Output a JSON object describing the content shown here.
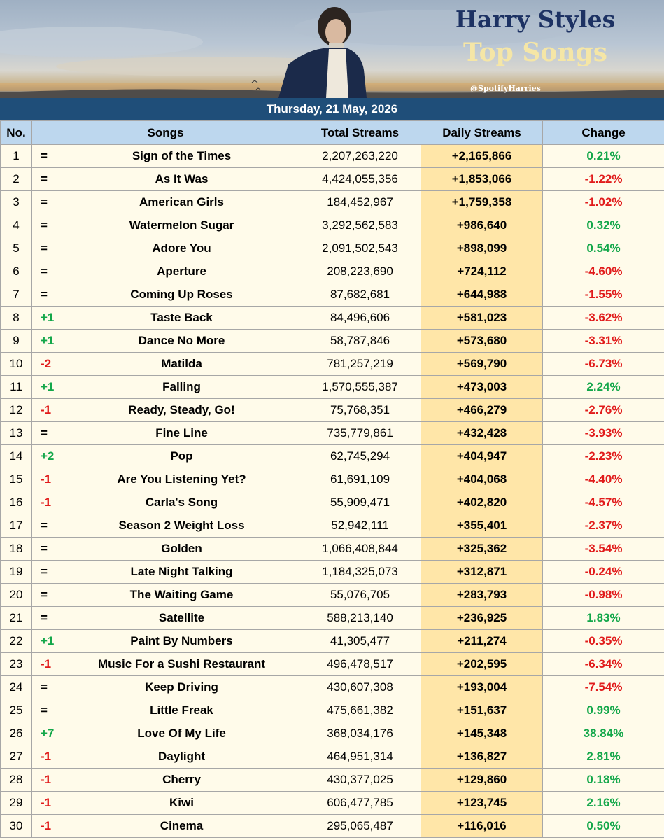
{
  "header": {
    "title_line1": "Harry Styles",
    "title_line2": "Top Songs",
    "handle": "@SpotifyHarries",
    "date": "Thursday, 21 May, 2026"
  },
  "colors": {
    "title_navy": "#1d3263",
    "title_cream": "#f5e6a6",
    "date_bar": "#1f4e79",
    "header_row": "#bdd7ee",
    "table_body": "#fffbea",
    "daily_column": "#ffe6a8",
    "positive": "#13a74a",
    "negative": "#e11b1b"
  },
  "chart_data": {
    "type": "table",
    "columns": [
      "No.",
      "Songs",
      "Total Streams",
      "Daily Streams",
      "Change"
    ],
    "rows": [
      {
        "no": "1",
        "move": "=",
        "song": "Sign of the Times",
        "total": "2,207,263,220",
        "daily": "+2,165,866",
        "change": "0.21%"
      },
      {
        "no": "2",
        "move": "=",
        "song": "As It Was",
        "total": "4,424,055,356",
        "daily": "+1,853,066",
        "change": "-1.22%"
      },
      {
        "no": "3",
        "move": "=",
        "song": "American Girls",
        "total": "184,452,967",
        "daily": "+1,759,358",
        "change": "-1.02%"
      },
      {
        "no": "4",
        "move": "=",
        "song": "Watermelon Sugar",
        "total": "3,292,562,583",
        "daily": "+986,640",
        "change": "0.32%"
      },
      {
        "no": "5",
        "move": "=",
        "song": "Adore You",
        "total": "2,091,502,543",
        "daily": "+898,099",
        "change": "0.54%"
      },
      {
        "no": "6",
        "move": "=",
        "song": "Aperture",
        "total": "208,223,690",
        "daily": "+724,112",
        "change": "-4.60%"
      },
      {
        "no": "7",
        "move": "=",
        "song": "Coming Up Roses",
        "total": "87,682,681",
        "daily": "+644,988",
        "change": "-1.55%"
      },
      {
        "no": "8",
        "move": "+1",
        "song": "Taste Back",
        "total": "84,496,606",
        "daily": "+581,023",
        "change": "-3.62%"
      },
      {
        "no": "9",
        "move": "+1",
        "song": "Dance No More",
        "total": "58,787,846",
        "daily": "+573,680",
        "change": "-3.31%"
      },
      {
        "no": "10",
        "move": "-2",
        "song": "Matilda",
        "total": "781,257,219",
        "daily": "+569,790",
        "change": "-6.73%"
      },
      {
        "no": "11",
        "move": "+1",
        "song": "Falling",
        "total": "1,570,555,387",
        "daily": "+473,003",
        "change": "2.24%"
      },
      {
        "no": "12",
        "move": "-1",
        "song": "Ready, Steady, Go!",
        "total": "75,768,351",
        "daily": "+466,279",
        "change": "-2.76%"
      },
      {
        "no": "13",
        "move": "=",
        "song": "Fine Line",
        "total": "735,779,861",
        "daily": "+432,428",
        "change": "-3.93%"
      },
      {
        "no": "14",
        "move": "+2",
        "song": "Pop",
        "total": "62,745,294",
        "daily": "+404,947",
        "change": "-2.23%"
      },
      {
        "no": "15",
        "move": "-1",
        "song": "Are You Listening Yet?",
        "total": "61,691,109",
        "daily": "+404,068",
        "change": "-4.40%"
      },
      {
        "no": "16",
        "move": "-1",
        "song": "Carla's Song",
        "total": "55,909,471",
        "daily": "+402,820",
        "change": "-4.57%"
      },
      {
        "no": "17",
        "move": "=",
        "song": "Season 2 Weight Loss",
        "total": "52,942,111",
        "daily": "+355,401",
        "change": "-2.37%"
      },
      {
        "no": "18",
        "move": "=",
        "song": "Golden",
        "total": "1,066,408,844",
        "daily": "+325,362",
        "change": "-3.54%"
      },
      {
        "no": "19",
        "move": "=",
        "song": "Late Night Talking",
        "total": "1,184,325,073",
        "daily": "+312,871",
        "change": "-0.24%"
      },
      {
        "no": "20",
        "move": "=",
        "song": "The Waiting Game",
        "total": "55,076,705",
        "daily": "+283,793",
        "change": "-0.98%"
      },
      {
        "no": "21",
        "move": "=",
        "song": "Satellite",
        "total": "588,213,140",
        "daily": "+236,925",
        "change": "1.83%"
      },
      {
        "no": "22",
        "move": "+1",
        "song": "Paint By Numbers",
        "total": "41,305,477",
        "daily": "+211,274",
        "change": "-0.35%"
      },
      {
        "no": "23",
        "move": "-1",
        "song": "Music For a Sushi Restaurant",
        "total": "496,478,517",
        "daily": "+202,595",
        "change": "-6.34%"
      },
      {
        "no": "24",
        "move": "=",
        "song": "Keep Driving",
        "total": "430,607,308",
        "daily": "+193,004",
        "change": "-7.54%"
      },
      {
        "no": "25",
        "move": "=",
        "song": "Little Freak",
        "total": "475,661,382",
        "daily": "+151,637",
        "change": "0.99%"
      },
      {
        "no": "26",
        "move": "+7",
        "song": "Love Of My Life",
        "total": "368,034,176",
        "daily": "+145,348",
        "change": "38.84%"
      },
      {
        "no": "27",
        "move": "-1",
        "song": "Daylight",
        "total": "464,951,314",
        "daily": "+136,827",
        "change": "2.81%"
      },
      {
        "no": "28",
        "move": "-1",
        "song": "Cherry",
        "total": "430,377,025",
        "daily": "+129,860",
        "change": "0.18%"
      },
      {
        "no": "29",
        "move": "-1",
        "song": "Kiwi",
        "total": "606,477,785",
        "daily": "+123,745",
        "change": "2.16%"
      },
      {
        "no": "30",
        "move": "-1",
        "song": "Cinema",
        "total": "295,065,487",
        "daily": "+116,016",
        "change": "0.50%"
      }
    ]
  }
}
